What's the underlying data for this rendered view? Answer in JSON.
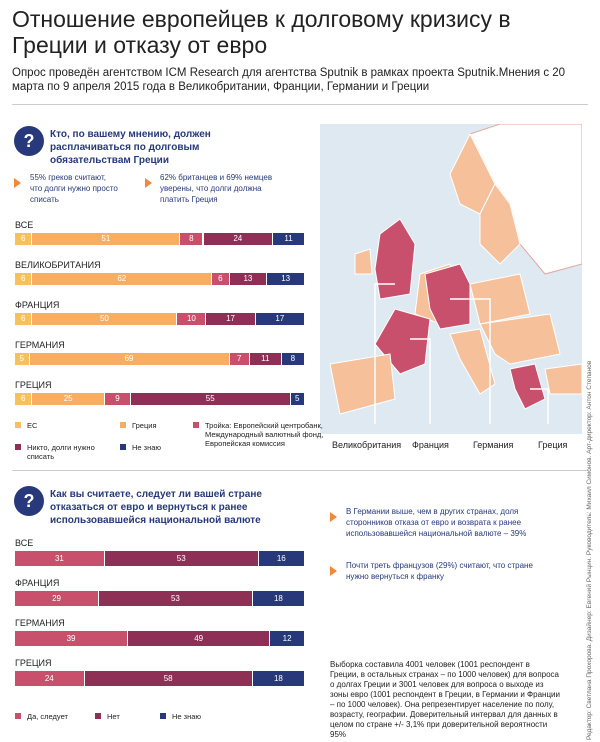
{
  "header": {
    "title": "Отношение европейцев к долговому кризису в Греции и отказу от евро",
    "subtitle": "Опрос проведён агентством ICM Research для агентства Sputnik в рамках проекта Sputnik.Мнения с 20 марта по 9 апреля 2015 года в Великобритании, Франции, Германии и Греции"
  },
  "section1": {
    "question": "Кто, по вашему мнению, должен расплачиваться по долговым обязательствам Греции",
    "notes": [
      "55% греков считают, что долги нужно просто списать",
      "62% британцев и 69% немцев уверены, что долги должна платить Греция"
    ],
    "series": [
      {
        "name": "ЕС",
        "color": "#f6c15c"
      },
      {
        "name": "Греция",
        "color": "#f8ae62"
      },
      {
        "name": "Тройка: Европейский центробанк, Международный валютный фонд, Европейская комиссия",
        "color": "#c9506c"
      },
      {
        "name": "Никто, долги нужно списать",
        "color": "#8e2f55"
      },
      {
        "name": "Не знаю",
        "color": "#27397a"
      }
    ],
    "rows": [
      {
        "label": "ВСЕ",
        "values": [
          6,
          51,
          8,
          24,
          11
        ]
      },
      {
        "label": "ВЕЛИКОБРИТАНИЯ",
        "values": [
          6,
          62,
          6,
          13,
          13
        ]
      },
      {
        "label": "ФРАНЦИЯ",
        "values": [
          6,
          50,
          10,
          17,
          17
        ]
      },
      {
        "label": "ГЕРМАНИЯ",
        "values": [
          5,
          69,
          7,
          11,
          8
        ]
      },
      {
        "label": "ГРЕЦИЯ",
        "values": [
          6,
          25,
          9,
          55,
          5
        ]
      }
    ],
    "map_labels": [
      "Великобритания",
      "Франция",
      "Германия",
      "Греция"
    ]
  },
  "section2": {
    "question": "Как вы считаете, следует ли вашей стране отказаться от евро и вернуться к ранее использовавшейся национальной валюте",
    "notes": [
      "В Германии выше, чем в других странах, доля сторонников отказа от евро и возврата к ранее использовавшейся национальной валюте – 39%",
      "Почти треть французов (29%) считают, что стране нужно вернуться к франку"
    ],
    "series": [
      {
        "name": "Да, следует",
        "color": "#c9506c"
      },
      {
        "name": "Нет",
        "color": "#8e2f55"
      },
      {
        "name": "Не знаю",
        "color": "#27397a"
      }
    ],
    "rows": [
      {
        "label": "ВСЕ",
        "values": [
          31,
          53,
          16
        ]
      },
      {
        "label": "ФРАНЦИЯ",
        "values": [
          29,
          53,
          18
        ]
      },
      {
        "label": "ГЕРМАНИЯ",
        "values": [
          39,
          49,
          12
        ]
      },
      {
        "label": "ГРЕЦИЯ",
        "values": [
          24,
          58,
          18
        ]
      }
    ],
    "footnote": "Выборка составила 4001 человек (1001 респондент в Греции, в остальных странах – по 1000 человек) для вопроса о долгах Греции и 3001 человек для вопроса о выходе из зоны евро (1001 респондент в Греции, в Германии и Франции – по 1000 человек). Она репрезентирует население по полу, возрасту, географии. Доверительный интервал для данных в целом по стране +/- 3,1% при доверительной вероятности 95%"
  },
  "credits": "Редактор: Светлана Прохорова. Дизайнер: Евгений Рынцин. Руководитель: Михаил Симонов. Арт-директор: Антон Степанов"
}
